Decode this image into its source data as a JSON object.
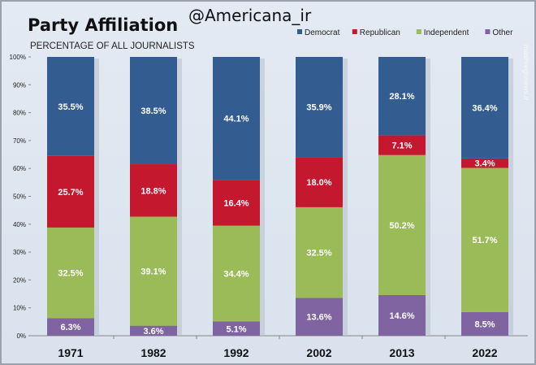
{
  "chart_data": {
    "type": "bar",
    "stacked": true,
    "title": "Party Affiliation",
    "subtitle": "PERCENTAGE OF ALL JOURNALISTS",
    "overlay_text": "@Americana_ir",
    "watermark": "mashreghnews.ir",
    "categories": [
      "1971",
      "1982",
      "1992",
      "2002",
      "2013",
      "2022"
    ],
    "series": [
      {
        "name": "Other",
        "color": "#8064a2",
        "values": [
          6.3,
          3.6,
          5.1,
          13.6,
          14.6,
          8.5
        ],
        "labels": [
          "6.3%",
          "3.6%",
          "5.1%",
          "13.6%",
          "14.6%",
          "8.5%"
        ]
      },
      {
        "name": "Independent",
        "color": "#9bbb59",
        "values": [
          32.5,
          39.1,
          34.4,
          32.5,
          50.2,
          51.7
        ],
        "labels": [
          "32.5%",
          "39.1%",
          "34.4%",
          "32.5%",
          "50.2%",
          "51.7%"
        ]
      },
      {
        "name": "Republican",
        "color": "#c4182f",
        "values": [
          25.7,
          18.8,
          16.4,
          18.0,
          7.1,
          3.4
        ],
        "labels": [
          "25.7%",
          "18.8%",
          "16.4%",
          "18.0%",
          "7.1%",
          "3.4%"
        ]
      },
      {
        "name": "Democrat",
        "color": "#335d91",
        "values": [
          35.5,
          38.5,
          44.1,
          35.9,
          28.1,
          36.4
        ],
        "labels": [
          "35.5%",
          "38.5%",
          "44.1%",
          "35.9%",
          "28.1%",
          "36.4%"
        ]
      }
    ],
    "legend_order": [
      "Democrat",
      "Republican",
      "Independent",
      "Other"
    ],
    "legend_position": "top-right",
    "ylim": [
      0,
      100
    ],
    "yticks": [
      "0%",
      "10%",
      "20%",
      "30%",
      "40%",
      "50%",
      "60%",
      "70%",
      "80%",
      "90%",
      "100%"
    ],
    "grid": false
  }
}
